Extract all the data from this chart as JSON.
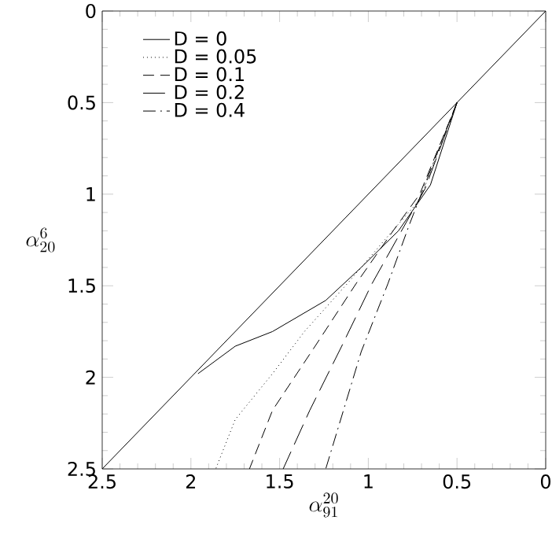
{
  "chart_data": {
    "type": "line",
    "xlabel": "\\alpha^{20}_{91}",
    "ylabel": "\\alpha^{6}_{20}",
    "xlim": [
      2.5,
      0
    ],
    "ylim": [
      2.5,
      0
    ],
    "xticks": [
      2.5,
      2,
      1.5,
      1,
      0.5,
      0
    ],
    "yticks": [
      2.5,
      2,
      1.5,
      1,
      0.5,
      0
    ],
    "legend": "top left",
    "grid": false,
    "marker": "none",
    "series": [
      {
        "name": "D = 0",
        "color": "#000000",
        "line_style": "solid",
        "x": [
          0.5,
          0.65,
          0.83,
          1.04,
          1.24,
          1.54,
          1.75,
          1.96
        ],
        "values": [
          0.5,
          0.95,
          1.2,
          1.4,
          1.58,
          1.75,
          1.83,
          1.98
        ]
      },
      {
        "name": "D = 0.05",
        "color": "#000000",
        "line_style": "dotted",
        "x": [
          0.5,
          0.71,
          0.89,
          1.12,
          1.36,
          1.54,
          1.75,
          1.86
        ],
        "values": [
          0.5,
          1.03,
          1.23,
          1.49,
          1.75,
          1.98,
          2.23,
          2.5
        ]
      },
      {
        "name": "D = 0.1",
        "color": "#000000",
        "line_style": "dashed",
        "x": [
          0.5,
          0.71,
          0.86,
          1.07,
          1.3,
          1.54,
          1.67
        ],
        "values": [
          0.5,
          1.0,
          1.2,
          1.49,
          1.83,
          2.18,
          2.5
        ]
      },
      {
        "name": "D = 0.2",
        "color": "#000000",
        "line_style": "long dashed",
        "x": [
          0.5,
          0.68,
          0.83,
          0.98,
          1.15,
          1.33,
          1.48
        ],
        "values": [
          0.5,
          0.97,
          1.23,
          1.49,
          1.83,
          2.18,
          2.5
        ]
      },
      {
        "name": "D = 0.4",
        "color": "#000000",
        "line_style": "dashdot",
        "x": [
          0.5,
          0.67,
          0.77,
          0.89,
          1.04,
          1.24
        ],
        "values": [
          0.5,
          0.92,
          1.17,
          1.49,
          1.86,
          2.5
        ]
      },
      {
        "color": "#000000",
        "line_style": "solid",
        "x": [
          0,
          2.5
        ],
        "values": [
          0,
          2.5
        ]
      }
    ]
  }
}
